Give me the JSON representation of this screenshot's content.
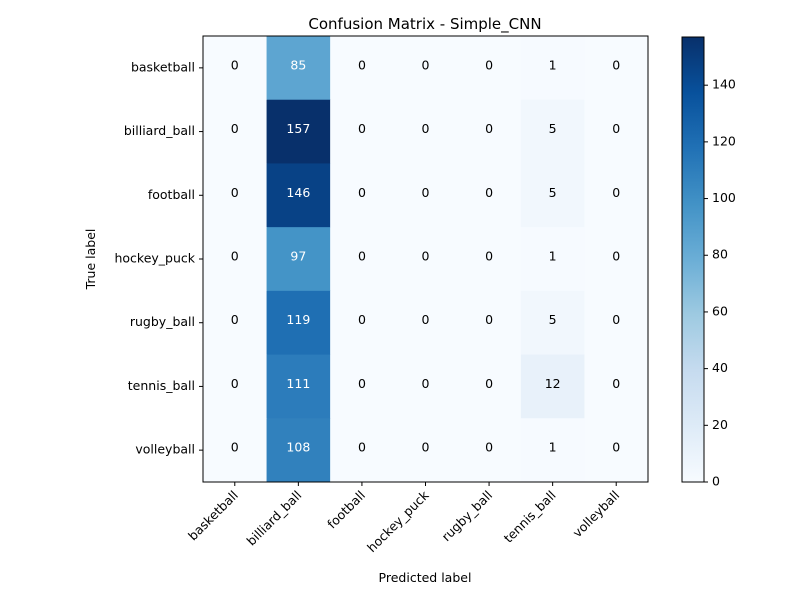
{
  "chart_data": {
    "type": "heatmap",
    "title": "Confusion Matrix - Simple_CNN",
    "xlabel": "Predicted label",
    "ylabel": "True label",
    "x_categories": [
      "basketball",
      "billiard_ball",
      "football",
      "hockey_puck",
      "rugby_ball",
      "tennis_ball",
      "volleyball"
    ],
    "y_categories": [
      "basketball",
      "billiard_ball",
      "football",
      "hockey_puck",
      "rugby_ball",
      "tennis_ball",
      "volleyball"
    ],
    "matrix": [
      [
        0,
        85,
        0,
        0,
        0,
        1,
        0
      ],
      [
        0,
        157,
        0,
        0,
        0,
        5,
        0
      ],
      [
        0,
        146,
        0,
        0,
        0,
        5,
        0
      ],
      [
        0,
        97,
        0,
        0,
        0,
        1,
        0
      ],
      [
        0,
        119,
        0,
        0,
        0,
        5,
        0
      ],
      [
        0,
        111,
        0,
        0,
        0,
        12,
        0
      ],
      [
        0,
        108,
        0,
        0,
        0,
        1,
        0
      ]
    ],
    "colormap": "Blues",
    "colorbar": {
      "min": 0,
      "max": 157,
      "ticks": [
        0,
        20,
        40,
        60,
        80,
        100,
        120,
        140
      ]
    },
    "grid": false
  }
}
